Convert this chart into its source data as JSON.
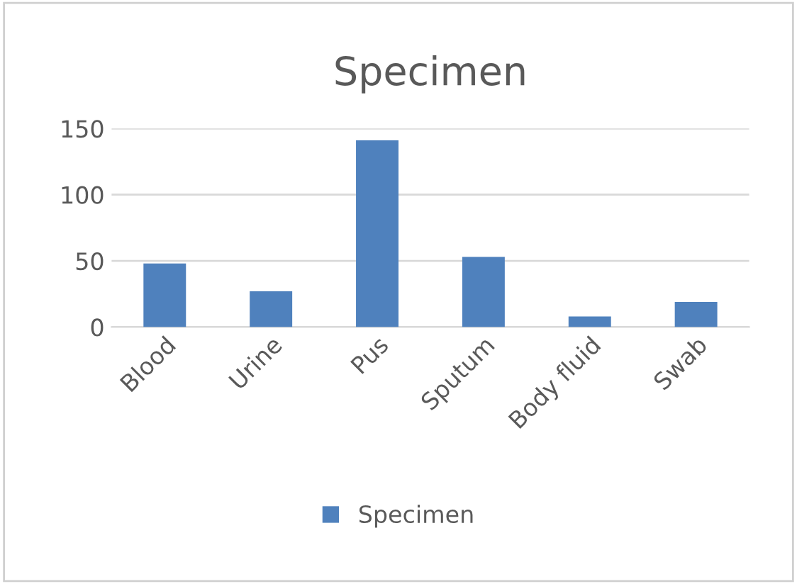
{
  "chart_data": {
    "type": "bar",
    "title": "Specimen",
    "categories": [
      "Blood",
      "Urine",
      "Pus",
      "Sputum",
      "Body fluid",
      "Swab"
    ],
    "series": [
      {
        "name": "Specimen",
        "color": "#4f81bd",
        "values": [
          48,
          27,
          141,
          53,
          8,
          19
        ]
      }
    ],
    "ylim": [
      0,
      150
    ],
    "yticks": [
      0,
      50,
      100,
      150
    ],
    "grid": "y",
    "legend": "bottom"
  }
}
